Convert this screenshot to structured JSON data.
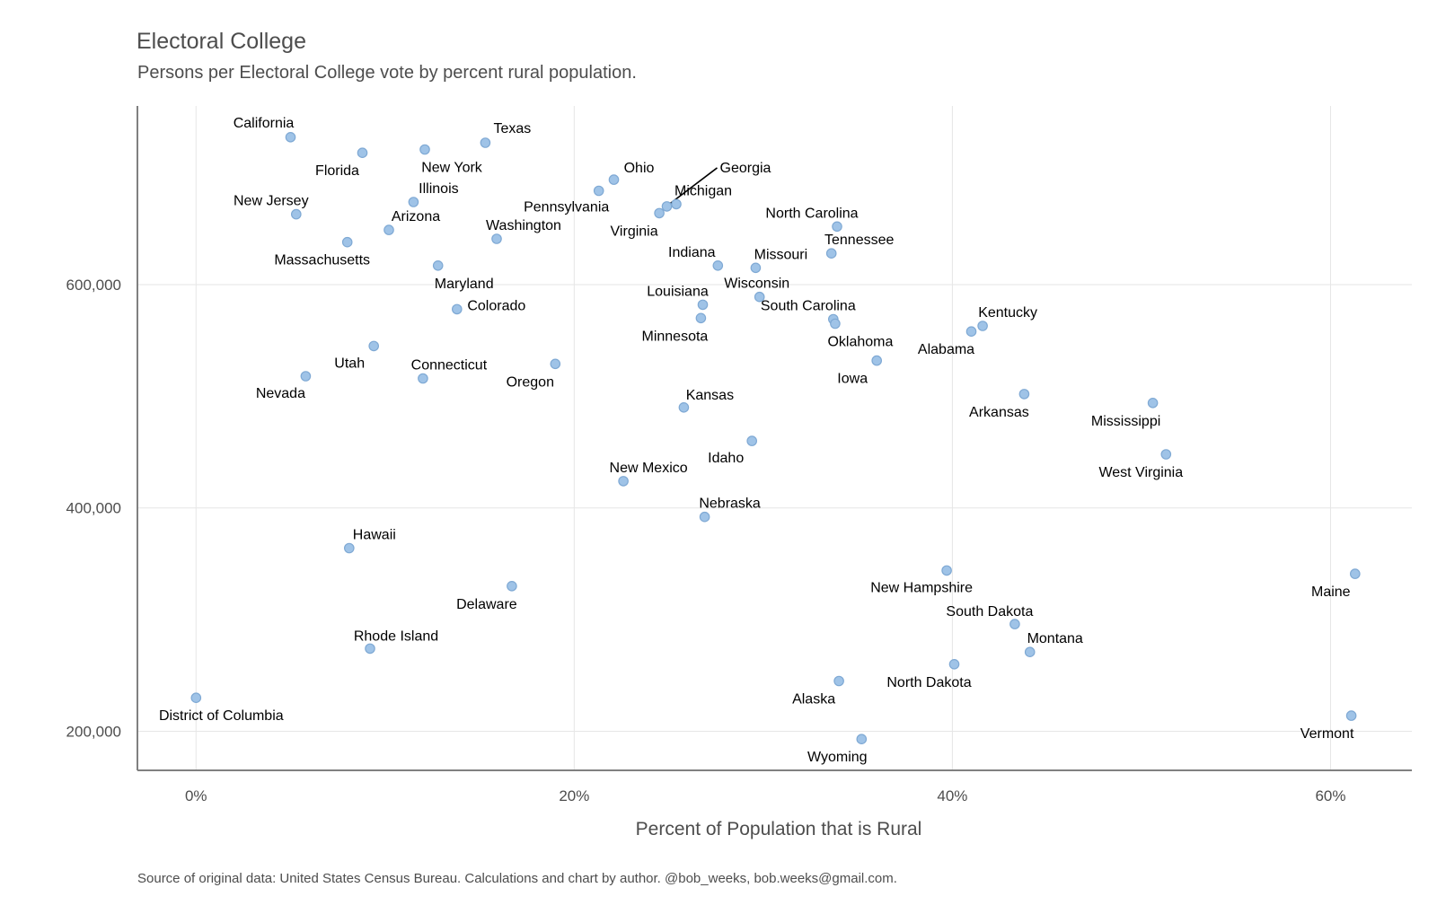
{
  "chart_data": {
    "type": "scatter",
    "title": "Electoral College",
    "subtitle": "Persons per Electoral College vote by percent rural population.",
    "caption": "Source of original data: United States Census Bureau. Calculations and chart by author. @bob_weeks, bob.weeks@gmail.com.",
    "xlabel": "Percent of Population that is Rural",
    "ylabel": "",
    "xlim": [
      -3.1,
      64.3
    ],
    "ylim": [
      165000,
      760000
    ],
    "x_ticks": [
      0,
      20,
      40,
      60
    ],
    "x_tick_labels": [
      "0%",
      "20%",
      "40%",
      "60%"
    ],
    "y_ticks": [
      200000,
      400000,
      600000
    ],
    "y_tick_labels": [
      "200,000",
      "400,000",
      "600,000"
    ],
    "grid": true,
    "point_color": "#9fc3e7",
    "points": [
      {
        "label": "California",
        "x": 5.0,
        "y": 732000
      },
      {
        "label": "Florida",
        "x": 8.8,
        "y": 718000
      },
      {
        "label": "New York",
        "x": 12.1,
        "y": 721000
      },
      {
        "label": "Texas",
        "x": 15.3,
        "y": 727000
      },
      {
        "label": "Illinois",
        "x": 11.5,
        "y": 674000
      },
      {
        "label": "New Jersey",
        "x": 5.3,
        "y": 663000
      },
      {
        "label": "Arizona",
        "x": 10.2,
        "y": 649000
      },
      {
        "label": "Massachusetts",
        "x": 8.0,
        "y": 638000
      },
      {
        "label": "Washington",
        "x": 15.9,
        "y": 641000
      },
      {
        "label": "Maryland",
        "x": 12.8,
        "y": 617000
      },
      {
        "label": "Colorado",
        "x": 13.8,
        "y": 578000
      },
      {
        "label": "Utah",
        "x": 9.4,
        "y": 545000
      },
      {
        "label": "Nevada",
        "x": 5.8,
        "y": 518000
      },
      {
        "label": "Connecticut",
        "x": 12.0,
        "y": 516000
      },
      {
        "label": "Oregon",
        "x": 19.0,
        "y": 529000
      },
      {
        "label": "Ohio",
        "x": 22.1,
        "y": 694000
      },
      {
        "label": "Pennsylvania",
        "x": 21.3,
        "y": 684000
      },
      {
        "label": "Michigan",
        "x": 25.4,
        "y": 672000
      },
      {
        "label": "Georgia",
        "x": 24.9,
        "y": 670000
      },
      {
        "label": "Virginia",
        "x": 24.5,
        "y": 664000
      },
      {
        "label": "Indiana",
        "x": 27.6,
        "y": 617000
      },
      {
        "label": "Missouri",
        "x": 29.6,
        "y": 615000
      },
      {
        "label": "North Carolina",
        "x": 33.9,
        "y": 652000
      },
      {
        "label": "Tennessee",
        "x": 33.6,
        "y": 628000
      },
      {
        "label": "Wisconsin",
        "x": 29.8,
        "y": 589000
      },
      {
        "label": "Louisiana",
        "x": 26.8,
        "y": 582000
      },
      {
        "label": "Minnesota",
        "x": 26.7,
        "y": 570000
      },
      {
        "label": "South Carolina",
        "x": 33.7,
        "y": 569000
      },
      {
        "label": "Oklahoma",
        "x": 33.8,
        "y": 565000
      },
      {
        "label": "Kentucky",
        "x": 41.6,
        "y": 563000
      },
      {
        "label": "Alabama",
        "x": 41.0,
        "y": 558000
      },
      {
        "label": "Iowa",
        "x": 36.0,
        "y": 532000
      },
      {
        "label": "Arkansas",
        "x": 43.8,
        "y": 502000
      },
      {
        "label": "Mississippi",
        "x": 50.6,
        "y": 494000
      },
      {
        "label": "Kansas",
        "x": 25.8,
        "y": 490000
      },
      {
        "label": "Idaho",
        "x": 29.4,
        "y": 460000
      },
      {
        "label": "West Virginia",
        "x": 51.3,
        "y": 448000
      },
      {
        "label": "New Mexico",
        "x": 22.6,
        "y": 424000
      },
      {
        "label": "Nebraska",
        "x": 26.9,
        "y": 392000
      },
      {
        "label": "Hawaii",
        "x": 8.1,
        "y": 364000
      },
      {
        "label": "Delaware",
        "x": 16.7,
        "y": 330000
      },
      {
        "label": "New Hampshire",
        "x": 39.7,
        "y": 344000
      },
      {
        "label": "Maine",
        "x": 61.3,
        "y": 341000
      },
      {
        "label": "South Dakota",
        "x": 43.3,
        "y": 296000
      },
      {
        "label": "Montana",
        "x": 44.1,
        "y": 271000
      },
      {
        "label": "Rhode Island",
        "x": 9.2,
        "y": 274000
      },
      {
        "label": "North Dakota",
        "x": 40.1,
        "y": 260000
      },
      {
        "label": "Alaska",
        "x": 34.0,
        "y": 245000
      },
      {
        "label": "District of Columbia",
        "x": 0.0,
        "y": 230000
      },
      {
        "label": "Vermont",
        "x": 61.1,
        "y": 214000
      },
      {
        "label": "Wyoming",
        "x": 35.2,
        "y": 193000
      }
    ]
  }
}
